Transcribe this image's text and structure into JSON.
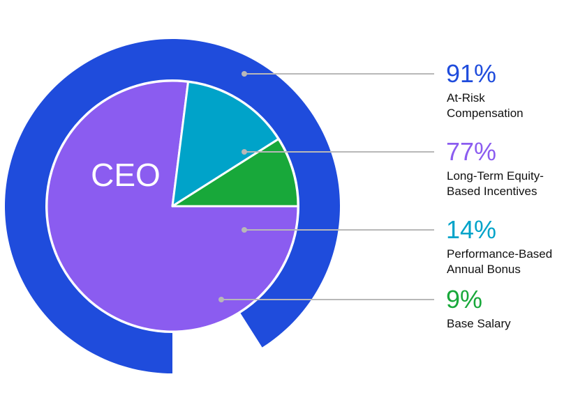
{
  "chart_data": {
    "type": "pie",
    "center_label": "CEO",
    "outer_ring": {
      "value": 91,
      "value_label": "91%",
      "label_lines": [
        "At-Risk",
        "Compensation"
      ],
      "color": "#1f4cdc"
    },
    "slices": [
      {
        "value": 77,
        "value_label": "77%",
        "label_lines": [
          "Long-Term Equity-",
          "Based Incentives"
        ],
        "color": "#8b5cf0"
      },
      {
        "value": 14,
        "value_label": "14%",
        "label_lines": [
          "Performance-Based",
          "Annual Bonus"
        ],
        "color": "#00a3c9"
      },
      {
        "value": 9,
        "value_label": "9%",
        "label_lines": [
          "Base Salary"
        ],
        "color": "#18a83a"
      }
    ],
    "connector_color": "#b8b8b8"
  }
}
